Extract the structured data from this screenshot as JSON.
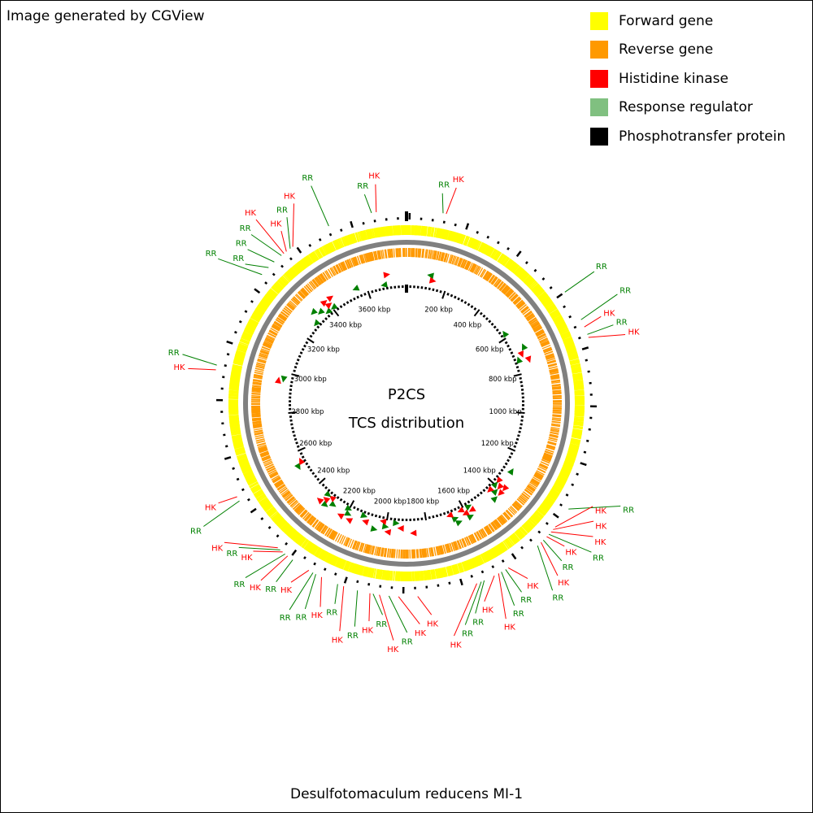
{
  "credit": "Image generated by CGView",
  "organism": "Desulfotomaculum reducens MI-1",
  "center_title": "P2CS",
  "center_subtitle": "TCS distribution",
  "colors": {
    "forward": "#ffff00",
    "reverse": "#ff9900",
    "hk": "#ff0000",
    "rr": "#008000",
    "legend_rr": "#80c080",
    "backbone": "#808080",
    "phospho": "#000000"
  },
  "legend": [
    {
      "label": "Forward gene",
      "color": "#ffff00"
    },
    {
      "label": "Reverse gene",
      "color": "#ff9900"
    },
    {
      "label": "Histidine kinase",
      "color": "#ff0000"
    },
    {
      "label": "Response regulator",
      "color": "#80c080"
    },
    {
      "label": "Phosphotransfer protein",
      "color": "#000000"
    }
  ],
  "genome": {
    "length_kbp": 3800,
    "ruler_labels": [
      "200 kbp",
      "400 kbp",
      "600 kbp",
      "800 kbp",
      "1000 kbp",
      "1200 kbp",
      "1400 kbp",
      "1600 kbp",
      "1800 kbp",
      "2000 kbp",
      "2200 kbp",
      "2400 kbp",
      "2600 kbp",
      "2800 kbp",
      "3000 kbp",
      "3200 kbp",
      "3400 kbp",
      "3600 kbp"
    ],
    "ruler_positions_kbp": [
      200,
      400,
      600,
      800,
      1000,
      1200,
      1400,
      1600,
      1800,
      2000,
      2200,
      2400,
      2600,
      2800,
      3000,
      3200,
      3400,
      3600
    ]
  },
  "features": [
    {
      "label": "RR",
      "type": "RR",
      "pos_kbp": 115
    },
    {
      "label": "HK",
      "type": "HK",
      "pos_kbp": 125
    },
    {
      "label": "RR",
      "type": "RR",
      "pos_kbp": 580
    },
    {
      "label": "RR",
      "type": "RR",
      "pos_kbp": 680
    },
    {
      "label": "HK",
      "type": "HK",
      "pos_kbp": 705
    },
    {
      "label": "RR",
      "type": "RR",
      "pos_kbp": 730
    },
    {
      "label": "HK",
      "type": "HK",
      "pos_kbp": 740
    },
    {
      "label": "RR",
      "type": "RR",
      "pos_kbp": 1300
    },
    {
      "label": "HK",
      "type": "HK",
      "pos_kbp": 1370
    },
    {
      "label": "HK",
      "type": "HK",
      "pos_kbp": 1380
    },
    {
      "label": "HK",
      "type": "HK",
      "pos_kbp": 1390
    },
    {
      "label": "RR",
      "type": "RR",
      "pos_kbp": 1400
    },
    {
      "label": "HK",
      "type": "HK",
      "pos_kbp": 1410
    },
    {
      "label": "RR",
      "type": "RR",
      "pos_kbp": 1425
    },
    {
      "label": "HK",
      "type": "HK",
      "pos_kbp": 1435
    },
    {
      "label": "RR",
      "type": "RR",
      "pos_kbp": 1450
    },
    {
      "label": "HK",
      "type": "HK",
      "pos_kbp": 1565
    },
    {
      "label": "RR",
      "type": "RR",
      "pos_kbp": 1575
    },
    {
      "label": "RR",
      "type": "RR",
      "pos_kbp": 1590
    },
    {
      "label": "HK",
      "type": "HK",
      "pos_kbp": 1600
    },
    {
      "label": "HK",
      "type": "HK",
      "pos_kbp": 1615
    },
    {
      "label": "RR",
      "type": "RR",
      "pos_kbp": 1650
    },
    {
      "label": "RR",
      "type": "RR",
      "pos_kbp": 1660
    },
    {
      "label": "HK",
      "type": "HK",
      "pos_kbp": 1675
    },
    {
      "label": "HK",
      "type": "HK",
      "pos_kbp": 1865
    },
    {
      "label": "HK",
      "type": "HK",
      "pos_kbp": 1925
    },
    {
      "label": "RR",
      "type": "RR",
      "pos_kbp": 1955
    },
    {
      "label": "HK",
      "type": "HK",
      "pos_kbp": 1985
    },
    {
      "label": "RR",
      "type": "RR",
      "pos_kbp": 2005
    },
    {
      "label": "HK",
      "type": "HK",
      "pos_kbp": 2015
    },
    {
      "label": "RR",
      "type": "RR",
      "pos_kbp": 2055
    },
    {
      "label": "HK",
      "type": "HK",
      "pos_kbp": 2100
    },
    {
      "label": "RR",
      "type": "RR",
      "pos_kbp": 2120
    },
    {
      "label": "HK",
      "type": "HK",
      "pos_kbp": 2175
    },
    {
      "label": "RR",
      "type": "RR",
      "pos_kbp": 2195
    },
    {
      "label": "RR",
      "type": "RR",
      "pos_kbp": 2205
    },
    {
      "label": "HK",
      "type": "HK",
      "pos_kbp": 2220
    },
    {
      "label": "RR",
      "type": "RR",
      "pos_kbp": 2280
    },
    {
      "label": "HK",
      "type": "HK",
      "pos_kbp": 2300
    },
    {
      "label": "RR",
      "type": "RR",
      "pos_kbp": 2310
    },
    {
      "label": "HK",
      "type": "HK",
      "pos_kbp": 2320
    },
    {
      "label": "RR",
      "type": "RR",
      "pos_kbp": 2330
    },
    {
      "label": "HK",
      "type": "HK",
      "pos_kbp": 2340
    },
    {
      "label": "RR",
      "type": "RR",
      "pos_kbp": 2530
    },
    {
      "label": "HK",
      "type": "HK",
      "pos_kbp": 2545
    },
    {
      "label": "HK",
      "type": "HK",
      "pos_kbp": 2955
    },
    {
      "label": "RR",
      "type": "RR",
      "pos_kbp": 2970
    },
    {
      "label": "RR",
      "type": "RR",
      "pos_kbp": 3290
    },
    {
      "label": "RR",
      "type": "RR",
      "pos_kbp": 3320
    },
    {
      "label": "RR",
      "type": "RR",
      "pos_kbp": 3345
    },
    {
      "label": "RR",
      "type": "RR",
      "pos_kbp": 3375
    },
    {
      "label": "HK",
      "type": "HK",
      "pos_kbp": 3385
    },
    {
      "label": "HK",
      "type": "HK",
      "pos_kbp": 3395
    },
    {
      "label": "RR",
      "type": "RR",
      "pos_kbp": 3410
    },
    {
      "label": "HK",
      "type": "HK",
      "pos_kbp": 3420
    },
    {
      "label": "RR",
      "type": "RR",
      "pos_kbp": 3550
    },
    {
      "label": "RR",
      "type": "RR",
      "pos_kbp": 3690
    },
    {
      "label": "HK",
      "type": "HK",
      "pos_kbp": 3705
    }
  ]
}
